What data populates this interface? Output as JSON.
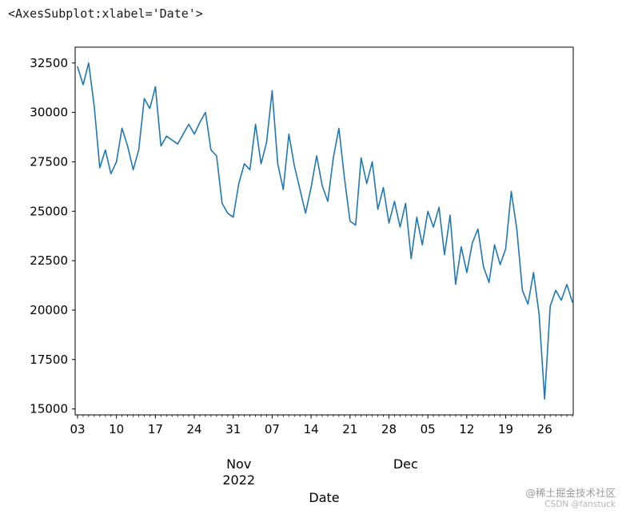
{
  "window": {
    "top_text": "<AxesSubplot:xlabel='Date'>"
  },
  "watermark": {
    "line1": "@稀土掘金技术社区",
    "line2": "CSDN @fanstuck"
  },
  "chart_data": {
    "type": "line",
    "title": "",
    "xlabel": "Date",
    "ylabel": "",
    "legend": "none",
    "grid": false,
    "line_color": "#1f77b4",
    "axis_color": "#000000",
    "ylim": [
      14700,
      33300
    ],
    "yticks": [
      15000,
      17500,
      20000,
      22500,
      25000,
      27500,
      30000,
      32500
    ],
    "x_start_date": "2022-10-03",
    "x_frequency": "daily",
    "x_major_ticks": {
      "day_indices": [
        0,
        7,
        14,
        21,
        28,
        35,
        42,
        49,
        56,
        63,
        70,
        77,
        84
      ],
      "labels": [
        "03",
        "10",
        "17",
        "24",
        "31",
        "07",
        "14",
        "21",
        "28",
        "05",
        "12",
        "19",
        "26"
      ]
    },
    "x_secondary_labels": [
      {
        "text": "Nov",
        "sub": "2022",
        "day_index": 29
      },
      {
        "text": "Dec",
        "sub": "",
        "day_index": 59
      }
    ],
    "values": [
      32300,
      31400,
      32500,
      30300,
      27200,
      28100,
      26900,
      27500,
      29200,
      28300,
      27100,
      28100,
      30700,
      30200,
      31300,
      28300,
      28800,
      28600,
      28400,
      28900,
      29400,
      28900,
      29500,
      30000,
      28100,
      27800,
      25400,
      24900,
      24700,
      26400,
      27400,
      27100,
      29400,
      27400,
      28500,
      31100,
      27400,
      26100,
      28900,
      27300,
      26100,
      24900,
      26200,
      27800,
      26300,
      25500,
      27700,
      29200,
      26700,
      24500,
      24300,
      27700,
      26400,
      27500,
      25100,
      26200,
      24400,
      25500,
      24200,
      25400,
      22600,
      24700,
      23300,
      25000,
      24200,
      25200,
      22800,
      24800,
      21300,
      23200,
      21900,
      23400,
      24100,
      22200,
      21400,
      23300,
      22300,
      23100,
      26000,
      24100,
      21000,
      20300,
      21900,
      19800,
      15500,
      20200,
      21000,
      20500,
      21300,
      20400
    ]
  }
}
